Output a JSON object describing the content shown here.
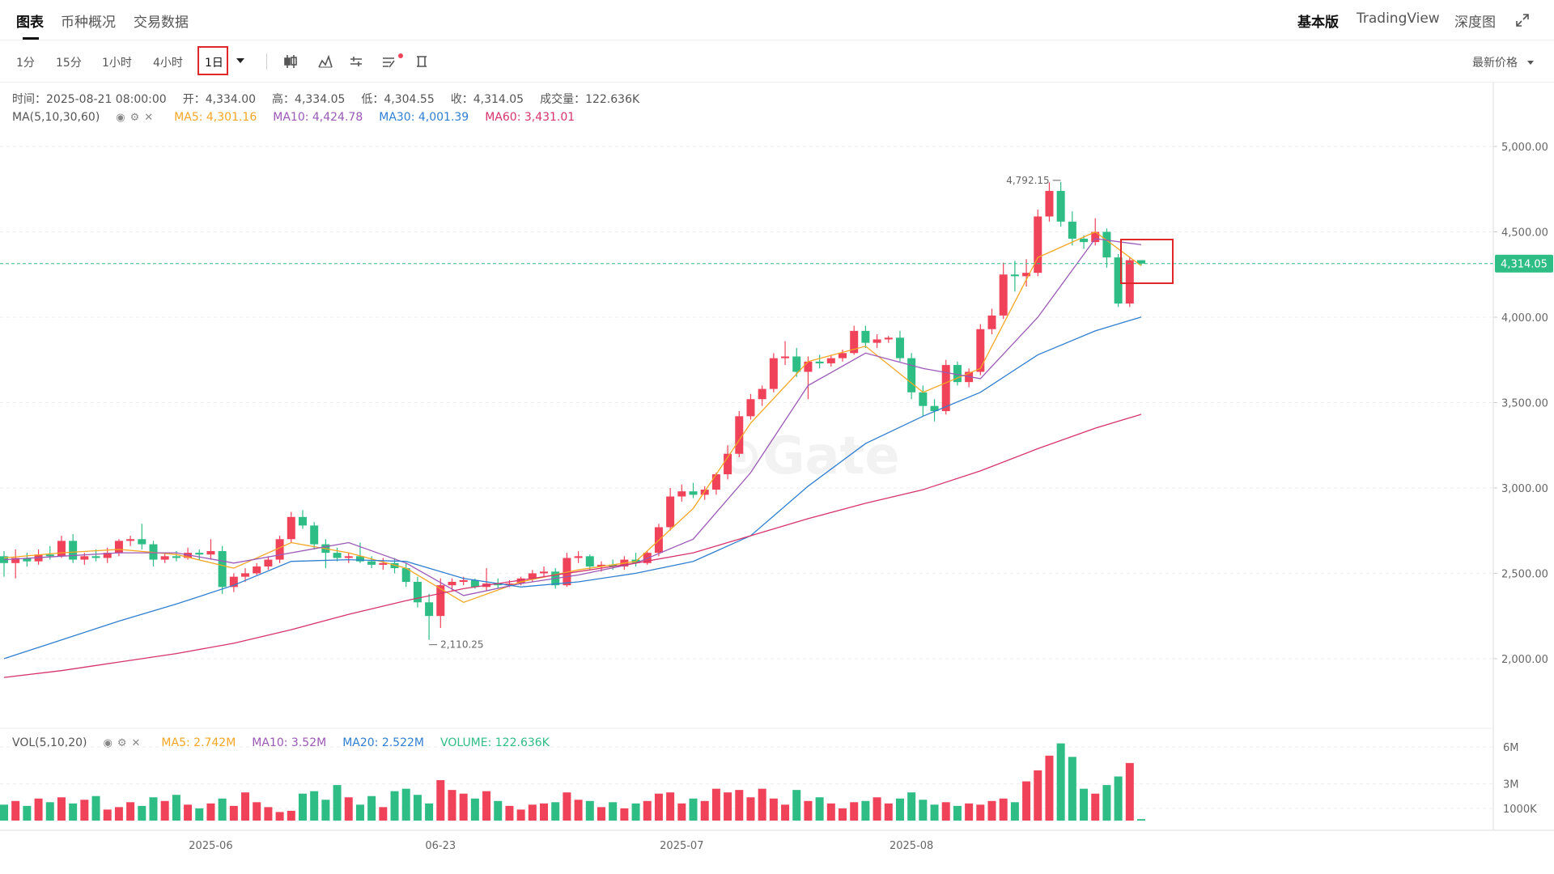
{
  "header": {
    "tabs": [
      "图表",
      "币种概况",
      "交易数据"
    ],
    "right_tabs": [
      "基本版",
      "TradingView",
      "深度图"
    ]
  },
  "toolbar": {
    "intervals": [
      "1分",
      "15分",
      "1小时",
      "4小时",
      "1日"
    ],
    "price_select": "最新价格"
  },
  "info": [
    "时间：2025-08-21 08:00:00",
    "开：4,334.00",
    "高：4,334.05",
    "低：4,304.55",
    "收：4,314.05",
    "成交量：122.636K"
  ],
  "ma_title": "MA(5,10,30,60)",
  "vol_legend": {
    "title": "VOL(5,10,20)",
    "items": [
      {
        "text": "MA5: 2.742M",
        "color": "#f5a623"
      },
      {
        "text": "MA10: 3.52M",
        "color": "#9b59b6"
      },
      {
        "text": "MA20: 2.522M",
        "color": "#2f7fd1"
      },
      {
        "text": "VOLUME: 122.636K",
        "color": "#2ebd85"
      }
    ]
  },
  "chart_data": {
    "type": "candlestick",
    "up_color": "#f0435a",
    "down_color": "#2ebd85",
    "grid": true,
    "ylim": [
      1592,
      5365
    ],
    "yticks": [
      {
        "value": 2000,
        "label": "2,000.00"
      },
      {
        "value": 2500,
        "label": "2,500.00"
      },
      {
        "value": 3000,
        "label": "3,000.00"
      },
      {
        "value": 3500,
        "label": "3,500.00"
      },
      {
        "value": 4000,
        "label": "4,000.00"
      },
      {
        "value": 4500,
        "label": "4,500.00"
      },
      {
        "value": 5000,
        "label": "5,000.00"
      }
    ],
    "vlim": [
      0,
      7.2
    ],
    "vticks": [
      {
        "value": 1,
        "label": "1000K"
      },
      {
        "value": 3,
        "label": "3M"
      },
      {
        "value": 6,
        "label": "6M"
      }
    ],
    "last_price": {
      "value": 4314.05,
      "label": "4,314.05"
    },
    "high_label": {
      "value": 4792.15,
      "label": "4,792.15"
    },
    "low_label": {
      "value": 2110.25,
      "label": "2,110.25"
    },
    "categories": [
      null,
      null,
      null,
      null,
      null,
      null,
      null,
      null,
      null,
      null,
      null,
      null,
      null,
      null,
      null,
      null,
      null,
      null,
      "2025-06",
      null,
      null,
      null,
      null,
      null,
      null,
      null,
      null,
      null,
      null,
      null,
      null,
      null,
      null,
      null,
      null,
      null,
      null,
      null,
      "06-23",
      null,
      null,
      null,
      null,
      null,
      null,
      null,
      null,
      null,
      null,
      null,
      null,
      null,
      null,
      null,
      null,
      null,
      null,
      null,
      null,
      "2025-07",
      null,
      null,
      null,
      null,
      null,
      null,
      null,
      null,
      null,
      null,
      null,
      null,
      null,
      null,
      null,
      null,
      null,
      null,
      null,
      "2025-08",
      null,
      null,
      null,
      null,
      null,
      null,
      null,
      null,
      null,
      null,
      null,
      null,
      null,
      null,
      null,
      null,
      null,
      null,
      null,
      null
    ],
    "ohlc": [
      [
        2600,
        2630,
        2480,
        2560
      ],
      [
        2560,
        2640,
        2470,
        2590
      ],
      [
        2590,
        2620,
        2540,
        2570
      ],
      [
        2570,
        2640,
        2550,
        2610
      ],
      [
        2610,
        2660,
        2580,
        2600
      ],
      [
        2600,
        2720,
        2590,
        2690
      ],
      [
        2690,
        2730,
        2560,
        2580
      ],
      [
        2580,
        2620,
        2550,
        2600
      ],
      [
        2600,
        2640,
        2570,
        2590
      ],
      [
        2590,
        2650,
        2560,
        2620
      ],
      [
        2620,
        2700,
        2600,
        2690
      ],
      [
        2690,
        2720,
        2660,
        2700
      ],
      [
        2700,
        2790,
        2640,
        2670
      ],
      [
        2670,
        2690,
        2540,
        2580
      ],
      [
        2580,
        2620,
        2560,
        2600
      ],
      [
        2600,
        2630,
        2570,
        2590
      ],
      [
        2590,
        2650,
        2580,
        2620
      ],
      [
        2620,
        2640,
        2580,
        2610
      ],
      [
        2610,
        2700,
        2580,
        2630
      ],
      [
        2630,
        2660,
        2380,
        2420
      ],
      [
        2420,
        2500,
        2390,
        2480
      ],
      [
        2480,
        2530,
        2450,
        2500
      ],
      [
        2500,
        2560,
        2490,
        2540
      ],
      [
        2540,
        2600,
        2520,
        2580
      ],
      [
        2580,
        2720,
        2560,
        2700
      ],
      [
        2700,
        2860,
        2680,
        2830
      ],
      [
        2830,
        2870,
        2760,
        2780
      ],
      [
        2780,
        2800,
        2640,
        2670
      ],
      [
        2670,
        2700,
        2530,
        2620
      ],
      [
        2620,
        2650,
        2570,
        2590
      ],
      [
        2590,
        2620,
        2560,
        2600
      ],
      [
        2600,
        2680,
        2560,
        2570
      ],
      [
        2570,
        2600,
        2530,
        2550
      ],
      [
        2550,
        2590,
        2520,
        2560
      ],
      [
        2560,
        2590,
        2500,
        2530
      ],
      [
        2530,
        2560,
        2420,
        2450
      ],
      [
        2450,
        2480,
        2300,
        2330
      ],
      [
        2330,
        2380,
        2110.25,
        2250
      ],
      [
        2250,
        2470,
        2180,
        2430
      ],
      [
        2430,
        2470,
        2400,
        2450
      ],
      [
        2450,
        2480,
        2430,
        2460
      ],
      [
        2460,
        2470,
        2410,
        2420
      ],
      [
        2420,
        2530,
        2400,
        2440
      ],
      [
        2440,
        2470,
        2410,
        2430
      ],
      [
        2430,
        2460,
        2420,
        2440
      ],
      [
        2440,
        2480,
        2430,
        2470
      ],
      [
        2470,
        2520,
        2450,
        2500
      ],
      [
        2500,
        2540,
        2480,
        2510
      ],
      [
        2510,
        2530,
        2410,
        2430
      ],
      [
        2430,
        2620,
        2420,
        2590
      ],
      [
        2590,
        2630,
        2560,
        2600
      ],
      [
        2600,
        2610,
        2520,
        2540
      ],
      [
        2540,
        2570,
        2510,
        2550
      ],
      [
        2550,
        2580,
        2520,
        2540
      ],
      [
        2540,
        2600,
        2520,
        2580
      ],
      [
        2580,
        2620,
        2540,
        2560
      ],
      [
        2560,
        2630,
        2550,
        2620
      ],
      [
        2620,
        2790,
        2600,
        2770
      ],
      [
        2770,
        3000,
        2750,
        2950
      ],
      [
        2950,
        3020,
        2920,
        2980
      ],
      [
        2980,
        3030,
        2940,
        2960
      ],
      [
        2960,
        3010,
        2930,
        2990
      ],
      [
        2990,
        3090,
        2960,
        3080
      ],
      [
        3080,
        3250,
        3050,
        3200
      ],
      [
        3200,
        3450,
        3180,
        3420
      ],
      [
        3420,
        3550,
        3400,
        3520
      ],
      [
        3520,
        3600,
        3480,
        3580
      ],
      [
        3580,
        3790,
        3560,
        3760
      ],
      [
        3760,
        3860,
        3720,
        3770
      ],
      [
        3770,
        3820,
        3650,
        3680
      ],
      [
        3680,
        3770,
        3520,
        3740
      ],
      [
        3740,
        3780,
        3700,
        3730
      ],
      [
        3730,
        3780,
        3710,
        3760
      ],
      [
        3760,
        3810,
        3740,
        3790
      ],
      [
        3790,
        3950,
        3780,
        3920
      ],
      [
        3920,
        3950,
        3820,
        3850
      ],
      [
        3850,
        3900,
        3820,
        3870
      ],
      [
        3870,
        3890,
        3850,
        3880
      ],
      [
        3880,
        3920,
        3740,
        3760
      ],
      [
        3760,
        3790,
        3520,
        3560
      ],
      [
        3560,
        3600,
        3420,
        3480
      ],
      [
        3480,
        3520,
        3390,
        3450
      ],
      [
        3450,
        3750,
        3430,
        3720
      ],
      [
        3720,
        3740,
        3600,
        3620
      ],
      [
        3620,
        3700,
        3590,
        3680
      ],
      [
        3680,
        3960,
        3660,
        3930
      ],
      [
        3930,
        4050,
        3900,
        4010
      ],
      [
        4010,
        4320,
        3990,
        4250
      ],
      [
        4250,
        4330,
        4150,
        4240
      ],
      [
        4240,
        4340,
        4180,
        4260
      ],
      [
        4260,
        4630,
        4240,
        4590
      ],
      [
        4590,
        4790,
        4560,
        4740
      ],
      [
        4740,
        4792.15,
        4530,
        4560
      ],
      [
        4560,
        4620,
        4420,
        4460
      ],
      [
        4460,
        4480,
        4400,
        4440
      ],
      [
        4440,
        4580,
        4420,
        4500
      ],
      [
        4500,
        4520,
        4290,
        4350
      ],
      [
        4350,
        4370,
        4060,
        4080
      ],
      [
        4080,
        4350,
        4060,
        4334
      ],
      [
        4334,
        4334.05,
        4304.55,
        4314.05
      ]
    ],
    "volume": [
      1.3,
      1.6,
      1.2,
      1.8,
      1.5,
      1.9,
      1.4,
      1.7,
      2.0,
      0.9,
      1.1,
      1.5,
      1.2,
      1.9,
      1.6,
      2.1,
      1.3,
      1.0,
      1.4,
      1.8,
      1.2,
      2.3,
      1.5,
      1.1,
      0.7,
      0.8,
      2.2,
      2.4,
      1.7,
      2.9,
      1.9,
      1.3,
      2.0,
      1.1,
      2.4,
      2.6,
      2.1,
      1.4,
      3.3,
      2.5,
      2.2,
      1.8,
      2.4,
      1.6,
      1.2,
      0.9,
      1.3,
      1.4,
      1.5,
      2.3,
      1.7,
      1.6,
      1.1,
      1.5,
      1.0,
      1.4,
      1.6,
      2.2,
      2.3,
      1.4,
      1.8,
      1.6,
      2.6,
      2.3,
      2.5,
      1.9,
      2.6,
      1.8,
      1.3,
      2.5,
      1.6,
      1.9,
      1.4,
      1.0,
      1.5,
      1.6,
      1.9,
      1.4,
      1.8,
      2.3,
      1.7,
      1.3,
      1.5,
      1.2,
      1.4,
      1.3,
      1.6,
      1.8,
      1.5,
      3.2,
      4.1,
      5.3,
      6.3,
      5.2,
      2.6,
      2.2,
      2.9,
      3.6,
      4.7,
      0.12
    ],
    "ma_x": [
      0,
      5,
      10,
      15,
      20,
      25,
      30,
      35,
      40,
      45,
      50,
      55,
      60,
      65,
      70,
      75,
      80,
      85,
      90,
      95,
      99
    ],
    "ma": [
      {
        "legend": "MA5: 4,301.16",
        "color": "#f5a623",
        "values": [
          2590,
          2620,
          2640,
          2610,
          2530,
          2680,
          2620,
          2530,
          2330,
          2450,
          2520,
          2570,
          2880,
          3380,
          3740,
          3830,
          3560,
          3700,
          4350,
          4500,
          4301.16
        ]
      },
      {
        "legend": "MA10: 4,424.78",
        "color": "#9b59b6",
        "values": [
          2580,
          2600,
          2620,
          2620,
          2560,
          2620,
          2680,
          2560,
          2370,
          2440,
          2490,
          2560,
          2700,
          3090,
          3600,
          3790,
          3700,
          3640,
          4000,
          4460,
          4424.78
        ]
      },
      {
        "legend": "MA30: 4,001.39",
        "color": "#2f7fd1",
        "values": [
          2000,
          2110,
          2220,
          2320,
          2430,
          2570,
          2580,
          2570,
          2470,
          2420,
          2450,
          2500,
          2570,
          2720,
          3010,
          3260,
          3420,
          3560,
          3780,
          3920,
          4001.39
        ]
      },
      {
        "legend": "MA60: 3,431.01",
        "color": "#d6336c",
        "values": [
          1890,
          1930,
          1980,
          2030,
          2090,
          2170,
          2260,
          2340,
          2410,
          2460,
          2510,
          2560,
          2620,
          2720,
          2820,
          2910,
          2990,
          3100,
          3230,
          3350,
          3431.01
        ]
      }
    ]
  }
}
